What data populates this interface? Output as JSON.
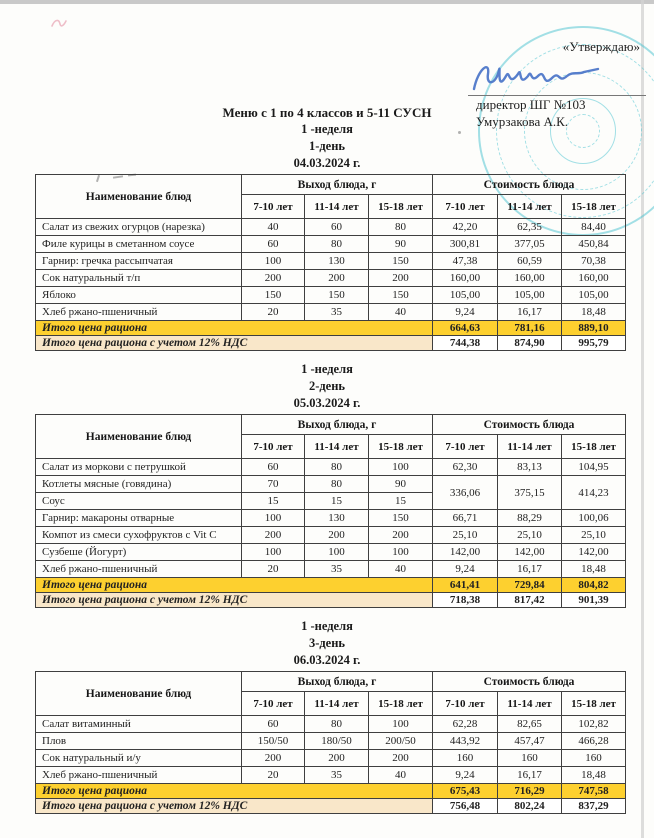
{
  "approval": {
    "approve_label": "«Утверждаю»",
    "role_line": "директор ШГ №103",
    "name_line": "Умурзакова А.К."
  },
  "main_title": "Меню с 1 по 4 классов и 5-11 СУСН",
  "table_template": {
    "name_header": "Наименование блюд",
    "output_group": "Выход блюда, г",
    "cost_group": "Стоимость блюда",
    "age_columns": [
      "7-10 лет",
      "11-14 лет",
      "15-18 лет"
    ],
    "total_label": "Итого цена рациона",
    "total_vat_label": "Итого цена рациона с учетом 12% НДС"
  },
  "colors": {
    "totals_yellow": "#fdd02f",
    "vat_peach": "#f9e7c9",
    "stamp_cyan": "#49c3d0",
    "signature_blue": "#4a74c8"
  },
  "days": [
    {
      "subtitle": [
        "1 -неделя",
        "1-день",
        "04.03.2024 г."
      ],
      "rows": [
        {
          "name": "Салат из свежих огурцов (нарезка)",
          "out": [
            "40",
            "60",
            "80"
          ],
          "cost": [
            "42,20",
            "62,35",
            "84,40"
          ]
        },
        {
          "name": "Филе курицы в сметанном соусе",
          "out": [
            "60",
            "80",
            "90"
          ],
          "cost": [
            "300,81",
            "377,05",
            "450,84"
          ]
        },
        {
          "name": "Гарнир: гречка рассыпчатая",
          "out": [
            "100",
            "130",
            "150"
          ],
          "cost": [
            "47,38",
            "60,59",
            "70,38"
          ]
        },
        {
          "name": "Сок натуральный т/п",
          "out": [
            "200",
            "200",
            "200"
          ],
          "cost": [
            "160,00",
            "160,00",
            "160,00"
          ]
        },
        {
          "name": "Яблоко",
          "out": [
            "150",
            "150",
            "150"
          ],
          "cost": [
            "105,00",
            "105,00",
            "105,00"
          ]
        },
        {
          "name": "Хлеб ржано-пшеничный",
          "out": [
            "20",
            "35",
            "40"
          ],
          "cost": [
            "9,24",
            "16,17",
            "18,48"
          ]
        }
      ],
      "total": [
        "664,63",
        "781,16",
        "889,10"
      ],
      "total_vat": [
        "744,38",
        "874,90",
        "995,79"
      ]
    },
    {
      "subtitle": [
        "1 -неделя",
        "2-день",
        "05.03.2024 г."
      ],
      "rows": [
        {
          "name": "Салат из моркови с петрушкой",
          "out": [
            "60",
            "80",
            "100"
          ],
          "cost": [
            "62,30",
            "83,13",
            "104,95"
          ]
        },
        {
          "name": "Котлеты мясные (говядина)",
          "out": [
            "70",
            "80",
            "90"
          ],
          "cost": [
            "336,06",
            "375,15",
            "414,23"
          ],
          "cost_rowspan": 2
        },
        {
          "name": "Соус",
          "out": [
            "15",
            "15",
            "15"
          ],
          "cost": null
        },
        {
          "name": "Гарнир: макароны отварные",
          "out": [
            "100",
            "130",
            "150"
          ],
          "cost": [
            "66,71",
            "88,29",
            "100,06"
          ]
        },
        {
          "name": "Компот из смеси сухофруктов с Vit C",
          "out": [
            "200",
            "200",
            "200"
          ],
          "cost": [
            "25,10",
            "25,10",
            "25,10"
          ]
        },
        {
          "name": "Сузбеше (Йогурт)",
          "out": [
            "100",
            "100",
            "100"
          ],
          "cost": [
            "142,00",
            "142,00",
            "142,00"
          ]
        },
        {
          "name": "Хлеб ржано-пшеничный",
          "out": [
            "20",
            "35",
            "40"
          ],
          "cost": [
            "9,24",
            "16,17",
            "18,48"
          ]
        }
      ],
      "total": [
        "641,41",
        "729,84",
        "804,82"
      ],
      "total_vat": [
        "718,38",
        "817,42",
        "901,39"
      ]
    },
    {
      "subtitle": [
        "1 -неделя",
        "3-день",
        "06.03.2024 г."
      ],
      "rows": [
        {
          "name": "Салат витаминный",
          "out": [
            "60",
            "80",
            "100"
          ],
          "cost": [
            "62,28",
            "82,65",
            "102,82"
          ]
        },
        {
          "name": "Плов",
          "out": [
            "150/50",
            "180/50",
            "200/50"
          ],
          "cost": [
            "443,92",
            "457,47",
            "466,28"
          ]
        },
        {
          "name": "Сок натуральный и/у",
          "out": [
            "200",
            "200",
            "200"
          ],
          "cost": [
            "160",
            "160",
            "160"
          ]
        },
        {
          "name": "Хлеб ржано-пшеничный",
          "out": [
            "20",
            "35",
            "40"
          ],
          "cost": [
            "9,24",
            "16,17",
            "18,48"
          ]
        }
      ],
      "total": [
        "675,43",
        "716,29",
        "747,58"
      ],
      "total_vat": [
        "756,48",
        "802,24",
        "837,29"
      ]
    }
  ]
}
